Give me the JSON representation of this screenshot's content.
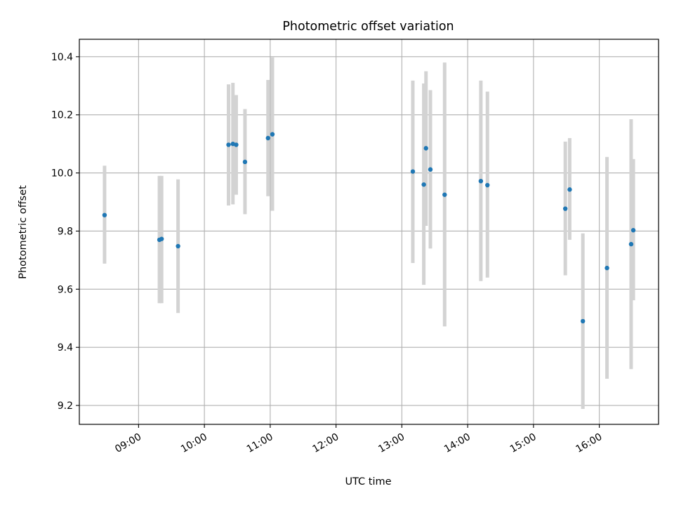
{
  "chart_data": {
    "type": "scatter",
    "title": "Photometric offset variation",
    "xlabel": "UTC time",
    "ylabel": "Photometric offset",
    "xlim": [
      "08:06",
      "16:54"
    ],
    "ylim": [
      9.135,
      10.46
    ],
    "grid": true,
    "legend": "none",
    "x_ticks": [
      "09:00",
      "10:00",
      "11:00",
      "12:00",
      "13:00",
      "14:00",
      "15:00",
      "16:00"
    ],
    "y_ticks": [
      "9.2",
      "9.4",
      "9.6",
      "9.8",
      "10.0",
      "10.2",
      "10.4"
    ],
    "series": [
      {
        "marker_color": "#1f77b4",
        "errorbar_color": "#d3d3d3",
        "points": [
          {
            "x": "08:29",
            "y": 9.855,
            "yerr_low": 9.688,
            "yerr_high": 10.025
          },
          {
            "x": "09:19",
            "y": 9.77,
            "yerr_low": 9.552,
            "yerr_high": 9.99
          },
          {
            "x": "09:21",
            "y": 9.773,
            "yerr_low": 9.552,
            "yerr_high": 9.99
          },
          {
            "x": "09:36",
            "y": 9.748,
            "yerr_low": 9.518,
            "yerr_high": 9.978
          },
          {
            "x": "10:22",
            "y": 10.097,
            "yerr_low": 9.888,
            "yerr_high": 10.305
          },
          {
            "x": "10:26",
            "y": 10.1,
            "yerr_low": 9.892,
            "yerr_high": 10.31
          },
          {
            "x": "10:29",
            "y": 10.097,
            "yerr_low": 9.925,
            "yerr_high": 10.268
          },
          {
            "x": "10:37",
            "y": 10.038,
            "yerr_low": 9.858,
            "yerr_high": 10.22
          },
          {
            "x": "10:58",
            "y": 10.12,
            "yerr_low": 9.92,
            "yerr_high": 10.32
          },
          {
            "x": "11:02",
            "y": 10.133,
            "yerr_low": 9.87,
            "yerr_high": 10.398
          },
          {
            "x": "13:10",
            "y": 10.005,
            "yerr_low": 9.69,
            "yerr_high": 10.318
          },
          {
            "x": "13:20",
            "y": 9.96,
            "yerr_low": 9.615,
            "yerr_high": 10.308
          },
          {
            "x": "13:22",
            "y": 10.085,
            "yerr_low": 9.818,
            "yerr_high": 10.35
          },
          {
            "x": "13:26",
            "y": 10.012,
            "yerr_low": 9.74,
            "yerr_high": 10.285
          },
          {
            "x": "13:39",
            "y": 9.925,
            "yerr_low": 9.472,
            "yerr_high": 10.38
          },
          {
            "x": "14:12",
            "y": 9.972,
            "yerr_low": 9.628,
            "yerr_high": 10.318
          },
          {
            "x": "14:18",
            "y": 9.958,
            "yerr_low": 9.64,
            "yerr_high": 10.28
          },
          {
            "x": "15:29",
            "y": 9.877,
            "yerr_low": 9.648,
            "yerr_high": 10.108
          },
          {
            "x": "15:33",
            "y": 9.943,
            "yerr_low": 9.77,
            "yerr_high": 10.12
          },
          {
            "x": "15:45",
            "y": 9.49,
            "yerr_low": 9.188,
            "yerr_high": 9.792
          },
          {
            "x": "16:07",
            "y": 9.673,
            "yerr_low": 9.292,
            "yerr_high": 10.055
          },
          {
            "x": "16:29",
            "y": 9.755,
            "yerr_low": 9.325,
            "yerr_high": 10.185
          },
          {
            "x": "16:31",
            "y": 9.803,
            "yerr_low": 9.562,
            "yerr_high": 10.048
          }
        ]
      }
    ]
  }
}
